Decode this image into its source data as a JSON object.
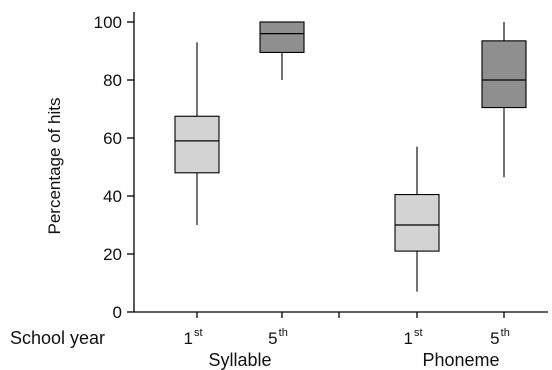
{
  "chart_data": {
    "type": "box",
    "ylabel": "Percentage of hits",
    "ylim": [
      0,
      100
    ],
    "yticks": [
      "0",
      "20",
      "40",
      "60",
      "80",
      "100"
    ],
    "x_row_label": "School year",
    "groups": [
      {
        "name": "Syllable",
        "boxes": [
          {
            "label": "1",
            "sup": "st",
            "min": 30,
            "q1": 48,
            "median": 59,
            "q3": 67.5,
            "max": 93,
            "color": "#d3d3d3"
          },
          {
            "label": "5",
            "sup": "th",
            "min": 80,
            "q1": 89.5,
            "median": 96,
            "q3": 100,
            "max": 100,
            "color": "#8f8f8f"
          }
        ]
      },
      {
        "name": "Phoneme",
        "boxes": [
          {
            "label": "1",
            "sup": "st",
            "min": 7,
            "q1": 21,
            "median": 30,
            "q3": 40.5,
            "max": 57,
            "color": "#d3d3d3"
          },
          {
            "label": "5",
            "sup": "th",
            "min": 46.5,
            "q1": 70.5,
            "median": 80,
            "q3": 93.5,
            "max": 100,
            "color": "#8f8f8f"
          }
        ]
      }
    ]
  }
}
